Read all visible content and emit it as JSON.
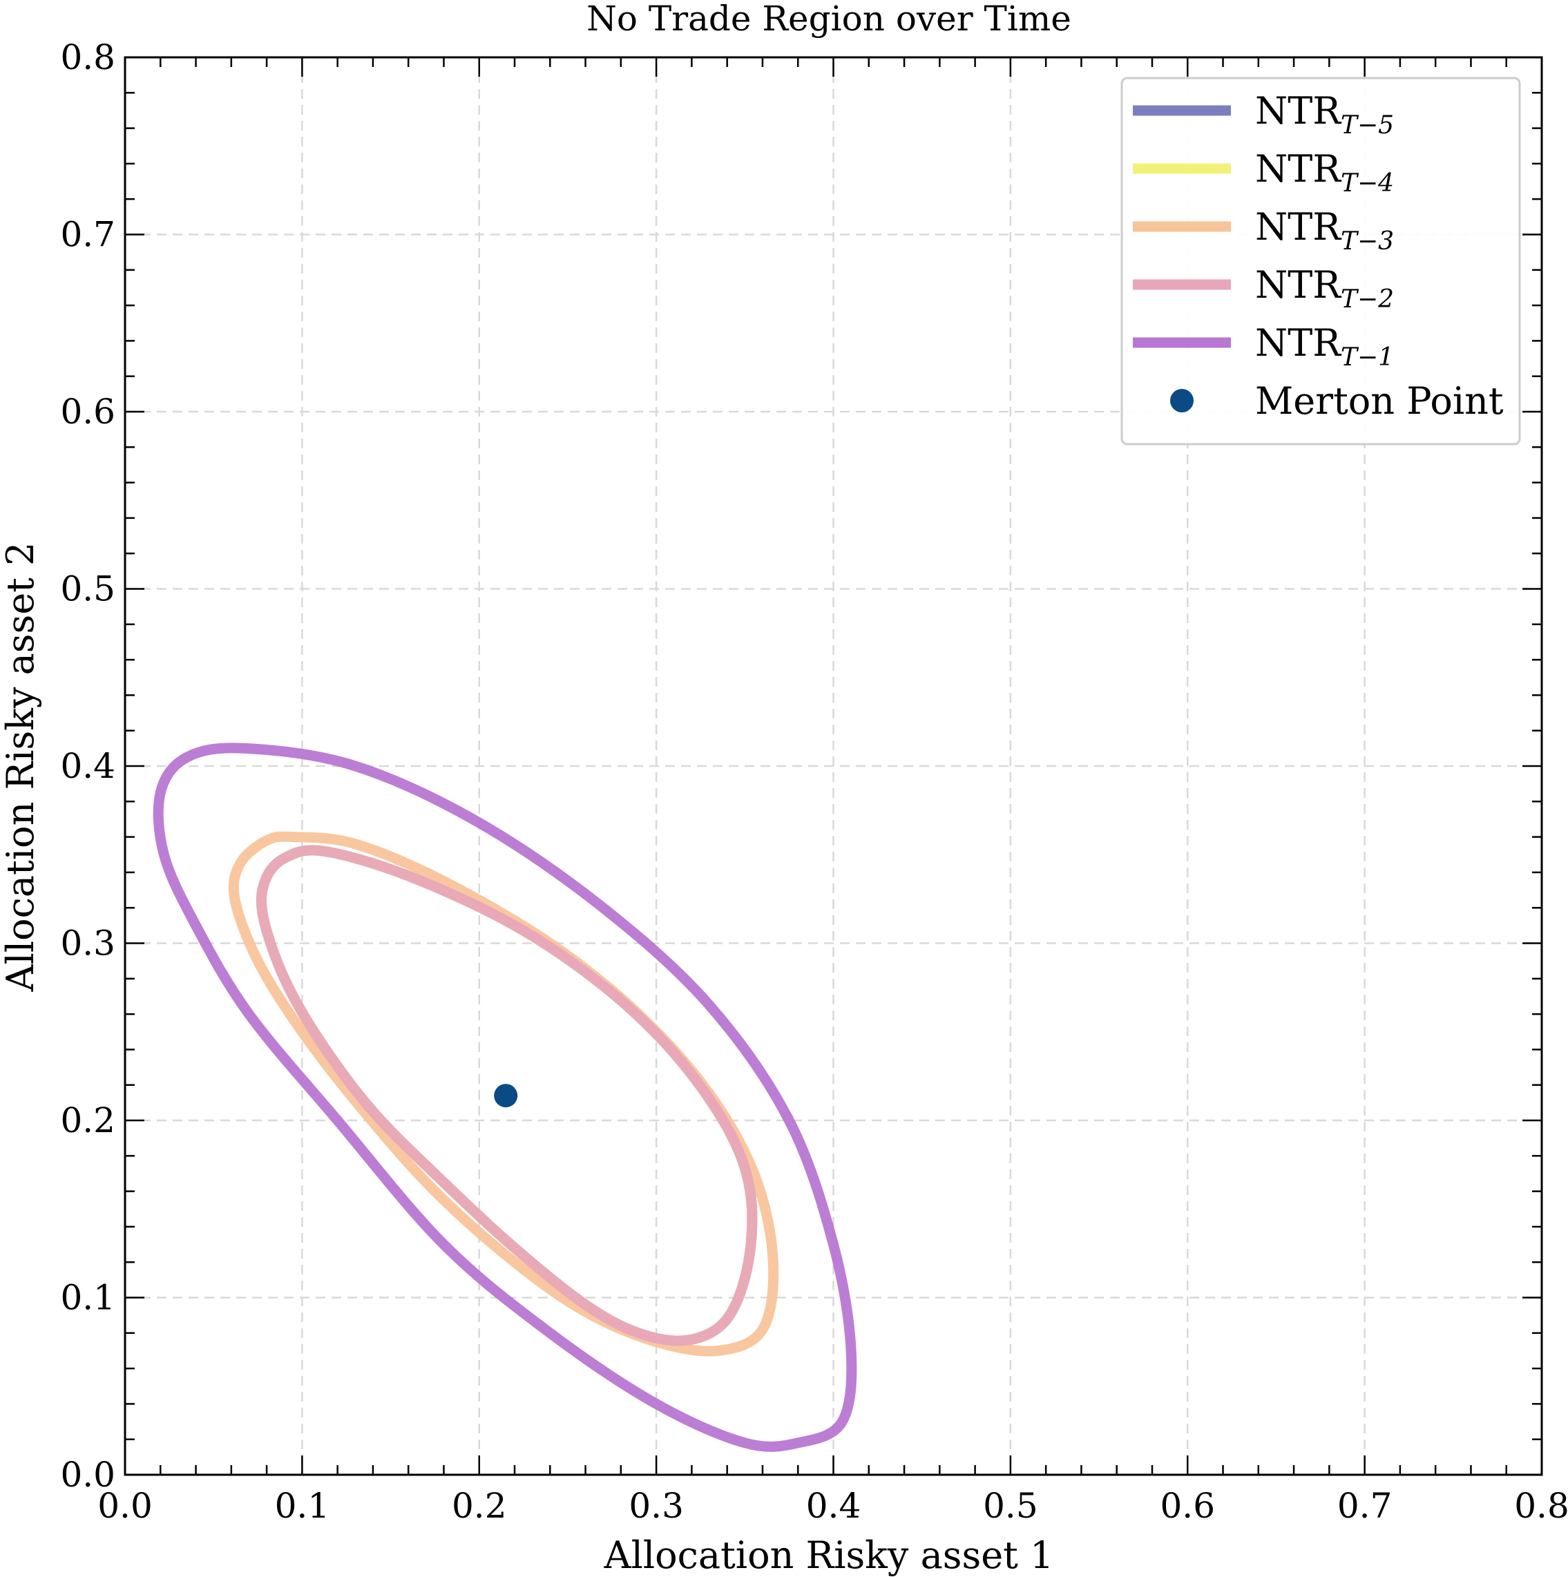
{
  "chart_data": {
    "type": "line",
    "title": "No Trade Region over Time",
    "xlabel": "Allocation Risky asset 1",
    "ylabel": "Allocation Risky asset 2",
    "xlim": [
      0.0,
      0.8
    ],
    "ylim": [
      0.0,
      0.8
    ],
    "xticks": [
      "0.0",
      "0.1",
      "0.2",
      "0.3",
      "0.4",
      "0.5",
      "0.6",
      "0.7",
      "0.8"
    ],
    "yticks": [
      "0.0",
      "0.1",
      "0.2",
      "0.3",
      "0.4",
      "0.5",
      "0.6",
      "0.7",
      "0.8"
    ],
    "grid": true,
    "legend_position": "top-right",
    "merton_point": {
      "name": "Merton Point",
      "x": 0.215,
      "y": 0.214,
      "color": "#0b4a85"
    },
    "series": [
      {
        "name": "NTR",
        "subscript": "T−5",
        "color": "#7b7fbf",
        "x": [
          0.112,
          0.16,
          0.22,
          0.27,
          0.31,
          0.34,
          0.353,
          0.352,
          0.34,
          0.318,
          0.29,
          0.26,
          0.22,
          0.18,
          0.14,
          0.11,
          0.09,
          0.078,
          0.079,
          0.09,
          0.112
        ],
        "y": [
          0.352,
          0.338,
          0.31,
          0.276,
          0.238,
          0.196,
          0.16,
          0.12,
          0.088,
          0.076,
          0.08,
          0.096,
          0.128,
          0.165,
          0.205,
          0.245,
          0.28,
          0.315,
          0.335,
          0.348,
          0.352
        ]
      },
      {
        "name": "NTR",
        "subscript": "T−4",
        "color": "#f2f27a",
        "x": [
          0.112,
          0.16,
          0.22,
          0.27,
          0.31,
          0.34,
          0.353,
          0.352,
          0.34,
          0.318,
          0.29,
          0.26,
          0.22,
          0.18,
          0.14,
          0.11,
          0.09,
          0.078,
          0.079,
          0.09,
          0.112
        ],
        "y": [
          0.352,
          0.338,
          0.31,
          0.276,
          0.238,
          0.196,
          0.16,
          0.12,
          0.088,
          0.076,
          0.08,
          0.096,
          0.128,
          0.165,
          0.205,
          0.245,
          0.28,
          0.315,
          0.335,
          0.348,
          0.352
        ]
      },
      {
        "name": "NTR",
        "subscript": "T−3",
        "color": "#f8c49a",
        "x": [
          0.095,
          0.13,
          0.18,
          0.24,
          0.29,
          0.33,
          0.356,
          0.366,
          0.36,
          0.335,
          0.3,
          0.26,
          0.22,
          0.175,
          0.135,
          0.1,
          0.075,
          0.062,
          0.065,
          0.08,
          0.095
        ],
        "y": [
          0.36,
          0.356,
          0.335,
          0.3,
          0.26,
          0.215,
          0.168,
          0.12,
          0.082,
          0.07,
          0.075,
          0.092,
          0.12,
          0.16,
          0.205,
          0.25,
          0.29,
          0.325,
          0.345,
          0.358,
          0.36
        ]
      },
      {
        "name": "NTR",
        "subscript": "T−2",
        "color": "#e8a6bb",
        "x": [
          0.112,
          0.16,
          0.22,
          0.27,
          0.31,
          0.34,
          0.353,
          0.352,
          0.34,
          0.318,
          0.29,
          0.26,
          0.22,
          0.18,
          0.14,
          0.11,
          0.09,
          0.078,
          0.079,
          0.09,
          0.112
        ],
        "y": [
          0.352,
          0.338,
          0.31,
          0.276,
          0.238,
          0.196,
          0.16,
          0.12,
          0.088,
          0.076,
          0.08,
          0.096,
          0.128,
          0.165,
          0.205,
          0.245,
          0.28,
          0.315,
          0.335,
          0.348,
          0.352
        ]
      },
      {
        "name": "NTR",
        "subscript": "T−1",
        "color": "#b877d2",
        "x": [
          0.068,
          0.13,
          0.2,
          0.27,
          0.33,
          0.375,
          0.4,
          0.41,
          0.405,
          0.38,
          0.35,
          0.3,
          0.24,
          0.18,
          0.12,
          0.07,
          0.04,
          0.022,
          0.02,
          0.035,
          0.068
        ],
        "y": [
          0.41,
          0.4,
          0.368,
          0.32,
          0.265,
          0.2,
          0.13,
          0.07,
          0.03,
          0.018,
          0.018,
          0.04,
          0.08,
          0.13,
          0.2,
          0.26,
          0.31,
          0.35,
          0.385,
          0.405,
          0.41
        ]
      }
    ]
  }
}
